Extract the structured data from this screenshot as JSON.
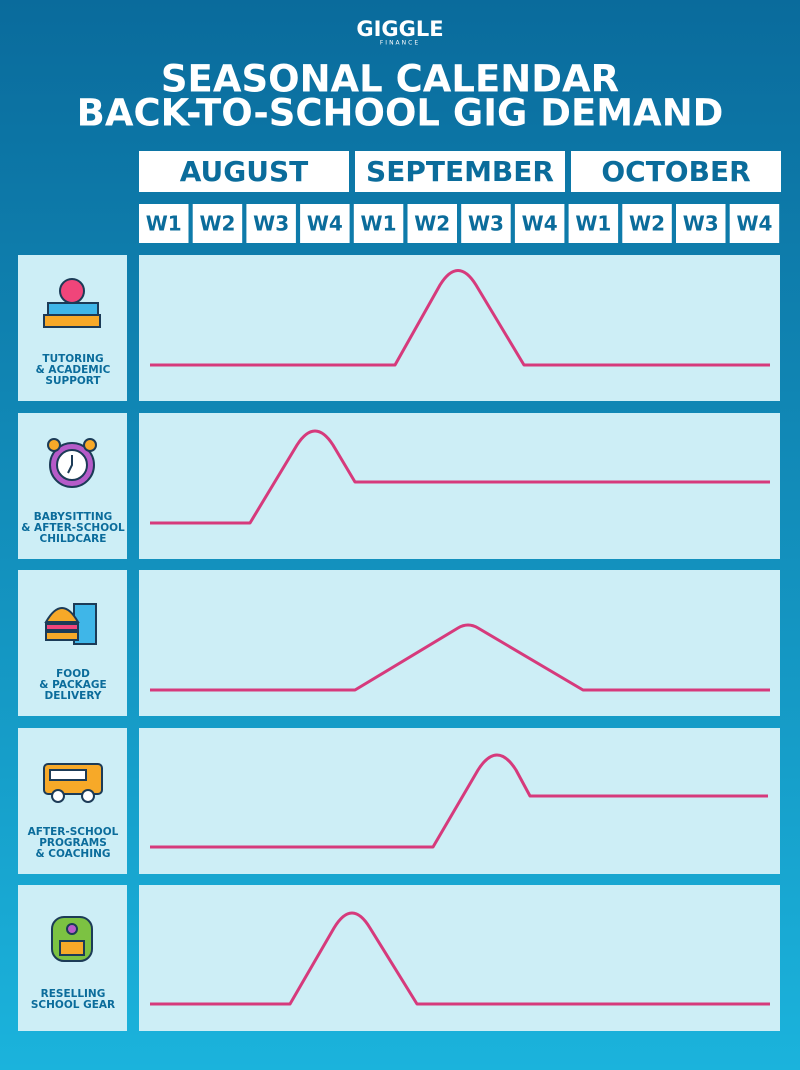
{
  "logo": {
    "name": "GIGGLE",
    "sub": "FINANCE"
  },
  "title": [
    "SEASONAL CALENDAR",
    "BACK-TO-SCHOOL GIG DEMAND"
  ],
  "months": [
    {
      "name": "AUGUST",
      "weeks": [
        "W1",
        "W2",
        "W3",
        "W4"
      ]
    },
    {
      "name": "SEPTEMBER",
      "weeks": [
        "W1",
        "W2",
        "W3",
        "W4"
      ]
    },
    {
      "name": "OCTOBER",
      "weeks": [
        "W1",
        "W2",
        "W3",
        "W4"
      ]
    }
  ],
  "rows": [
    {
      "label": [
        "TUTORING",
        "& ACADEMIC",
        "SUPPORT"
      ]
    },
    {
      "label": [
        "BABYSITTING",
        "& AFTER-SCHOOL",
        "CHILDCARE"
      ]
    },
    {
      "label": [
        "FOOD",
        "& PACKAGE",
        "DELIVERY"
      ]
    },
    {
      "label": [
        "AFTER-SCHOOL",
        "PROGRAMS",
        "& COACHING"
      ]
    },
    {
      "label": [
        "RESELLING",
        "SCHOOL GEAR"
      ]
    }
  ]
}
